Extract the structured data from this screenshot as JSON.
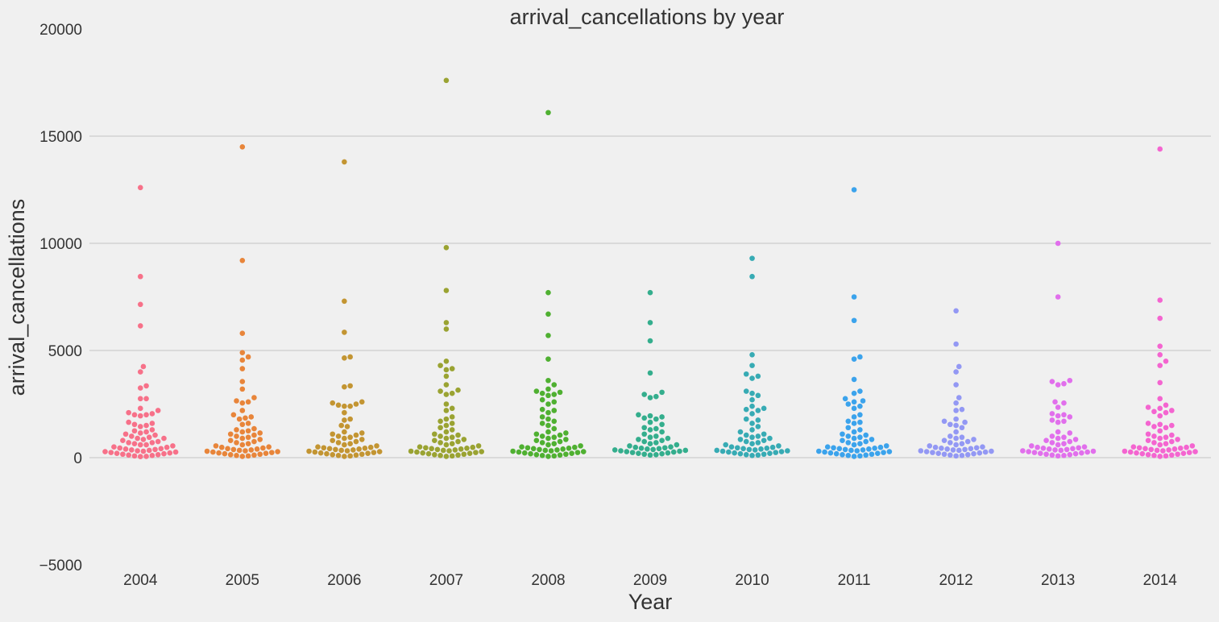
{
  "chart_data": {
    "type": "scatter",
    "subtype": "swarm",
    "title": "arrival_cancellations by year",
    "xlabel": "Year",
    "ylabel": "arrival_cancellations",
    "categories": [
      "2004",
      "2005",
      "2006",
      "2007",
      "2008",
      "2009",
      "2010",
      "2011",
      "2012",
      "2013",
      "2014"
    ],
    "ylim": [
      -5000,
      20000
    ],
    "yticks": [
      -5000,
      0,
      5000,
      10000,
      15000,
      20000
    ],
    "ytick_labels": [
      "−5000",
      "0",
      "5000",
      "10000",
      "15000",
      "20000"
    ],
    "grid": "horizontal",
    "background": "#f0f0f0",
    "series": [
      {
        "category": "2004",
        "color": "#f77189",
        "values": [
          12600,
          8450,
          7150,
          6150,
          4250,
          4000,
          3350,
          3250,
          2750,
          2750,
          2300,
          2200,
          2100,
          2050,
          2000,
          2000,
          1950,
          1650,
          1600,
          1550,
          1500,
          1450,
          1300,
          1250,
          1200,
          1150,
          1100,
          1050,
          1000,
          950,
          900,
          900,
          850,
          800,
          750,
          700,
          700,
          650,
          600,
          600,
          550,
          500,
          480,
          450,
          420,
          400,
          380,
          360,
          340,
          320,
          300,
          280,
          260,
          240,
          220,
          200,
          180,
          160,
          140,
          120,
          100,
          80,
          60,
          50
        ]
      },
      {
        "category": "2005",
        "color": "#e8853a",
        "values": [
          14500,
          9200,
          5800,
          4900,
          4700,
          4550,
          4150,
          3550,
          3200,
          2800,
          2650,
          2600,
          2550,
          2200,
          2000,
          1900,
          1850,
          1800,
          1600,
          1550,
          1350,
          1300,
          1250,
          1200,
          1150,
          1100,
          1050,
          1000,
          950,
          900,
          850,
          800,
          750,
          700,
          650,
          600,
          550,
          500,
          480,
          450,
          420,
          400,
          380,
          360,
          340,
          320,
          300,
          280,
          260,
          240,
          220,
          200,
          180,
          160,
          140,
          120,
          100,
          80,
          60
        ]
      },
      {
        "category": "2006",
        "color": "#c39532",
        "values": [
          13800,
          7300,
          5850,
          4700,
          4650,
          3350,
          3300,
          2600,
          2550,
          2500,
          2450,
          2400,
          2400,
          2100,
          1800,
          1750,
          1500,
          1450,
          1200,
          1150,
          1100,
          1050,
          1000,
          950,
          900,
          850,
          800,
          750,
          700,
          650,
          600,
          550,
          500,
          480,
          460,
          440,
          420,
          400,
          380,
          360,
          340,
          320,
          300,
          280,
          260,
          240,
          220,
          200,
          180,
          160,
          140,
          120,
          100,
          80,
          60
        ]
      },
      {
        "category": "2007",
        "color": "#9aa332",
        "values": [
          17600,
          9800,
          7800,
          6300,
          6000,
          4500,
          4300,
          4150,
          4100,
          3800,
          3400,
          3150,
          3100,
          3000,
          2950,
          2500,
          2300,
          2200,
          1900,
          1800,
          1700,
          1600,
          1500,
          1400,
          1300,
          1200,
          1100,
          1050,
          1000,
          950,
          900,
          850,
          800,
          750,
          700,
          650,
          600,
          550,
          500,
          480,
          460,
          440,
          420,
          400,
          380,
          360,
          340,
          320,
          300,
          280,
          260,
          240,
          220,
          200,
          180,
          160,
          140,
          120,
          100,
          80,
          60
        ]
      },
      {
        "category": "2008",
        "color": "#4fb031",
        "values": [
          16100,
          7700,
          6700,
          5700,
          4600,
          3600,
          3400,
          3200,
          3100,
          3050,
          3000,
          2950,
          2900,
          2700,
          2600,
          2500,
          2250,
          2200,
          2100,
          1900,
          1800,
          1700,
          1600,
          1500,
          1350,
          1200,
          1150,
          1100,
          1050,
          1000,
          950,
          900,
          850,
          800,
          750,
          700,
          650,
          600,
          550,
          500,
          480,
          460,
          440,
          420,
          400,
          380,
          360,
          340,
          320,
          300,
          280,
          260,
          240,
          220,
          200,
          180,
          160,
          140,
          120,
          100,
          80,
          60
        ]
      },
      {
        "category": "2009",
        "color": "#34ae8d",
        "values": [
          7700,
          6300,
          5450,
          3950,
          3050,
          2950,
          2850,
          2800,
          2000,
          1950,
          1900,
          1850,
          1800,
          1650,
          1550,
          1400,
          1350,
          1300,
          1200,
          1100,
          1000,
          950,
          900,
          850,
          800,
          750,
          700,
          650,
          600,
          550,
          500,
          480,
          460,
          440,
          420,
          400,
          380,
          360,
          340,
          320,
          300,
          280,
          260,
          240,
          220,
          200,
          180,
          160,
          140,
          120
        ]
      },
      {
        "category": "2010",
        "color": "#37abb4",
        "values": [
          9300,
          8450,
          4800,
          4300,
          3900,
          3800,
          3700,
          3100,
          3000,
          2900,
          2700,
          2400,
          2300,
          2250,
          2200,
          2050,
          1800,
          1750,
          1600,
          1450,
          1300,
          1200,
          1100,
          1050,
          1000,
          950,
          900,
          850,
          800,
          750,
          700,
          650,
          600,
          550,
          500,
          480,
          460,
          440,
          420,
          400,
          380,
          360,
          340,
          320,
          300,
          280,
          260,
          240,
          220,
          200,
          180,
          160,
          140,
          120,
          100
        ]
      },
      {
        "category": "2011",
        "color": "#3ba3ec",
        "values": [
          12500,
          7500,
          6400,
          4700,
          4600,
          3650,
          3100,
          3000,
          2750,
          2650,
          2600,
          2500,
          2400,
          2300,
          2000,
          1900,
          1700,
          1650,
          1600,
          1400,
          1300,
          1200,
          1100,
          1050,
          1000,
          950,
          900,
          850,
          800,
          750,
          700,
          650,
          600,
          550,
          500,
          480,
          460,
          440,
          420,
          400,
          380,
          360,
          340,
          320,
          300,
          280,
          260,
          240,
          220,
          200,
          180,
          160,
          140,
          120,
          100,
          80,
          60
        ]
      },
      {
        "category": "2012",
        "color": "#9398f4",
        "values": [
          6850,
          5300,
          4250,
          4000,
          3400,
          2800,
          2550,
          2250,
          2200,
          1800,
          1700,
          1650,
          1550,
          1500,
          1400,
          1200,
          1000,
          950,
          900,
          850,
          800,
          750,
          700,
          650,
          600,
          550,
          500,
          480,
          460,
          440,
          420,
          400,
          380,
          360,
          340,
          320,
          300,
          280,
          260,
          240,
          220,
          200,
          180,
          160,
          140,
          120,
          100,
          80
        ]
      },
      {
        "category": "2013",
        "color": "#e16fec",
        "values": [
          10000,
          7500,
          3600,
          3550,
          3450,
          3400,
          2600,
          2550,
          2350,
          2050,
          2000,
          1950,
          1900,
          1750,
          1700,
          1650,
          1200,
          1150,
          1000,
          950,
          900,
          850,
          800,
          750,
          700,
          650,
          600,
          550,
          500,
          480,
          460,
          440,
          420,
          400,
          380,
          360,
          340,
          320,
          300,
          280,
          260,
          240,
          220,
          200,
          180,
          160,
          140,
          120,
          100,
          80
        ]
      },
      {
        "category": "2014",
        "color": "#f465d0",
        "values": [
          14400,
          7350,
          6500,
          5200,
          4800,
          4500,
          4300,
          3500,
          2750,
          2450,
          2350,
          2300,
          2200,
          2150,
          2100,
          1950,
          1600,
          1550,
          1500,
          1450,
          1400,
          1250,
          1100,
          1050,
          1000,
          950,
          900,
          850,
          800,
          750,
          700,
          650,
          600,
          550,
          500,
          480,
          460,
          440,
          420,
          400,
          380,
          360,
          340,
          320,
          300,
          280,
          260,
          240,
          220,
          200,
          180,
          160,
          140,
          120,
          100,
          80,
          60
        ]
      }
    ]
  }
}
